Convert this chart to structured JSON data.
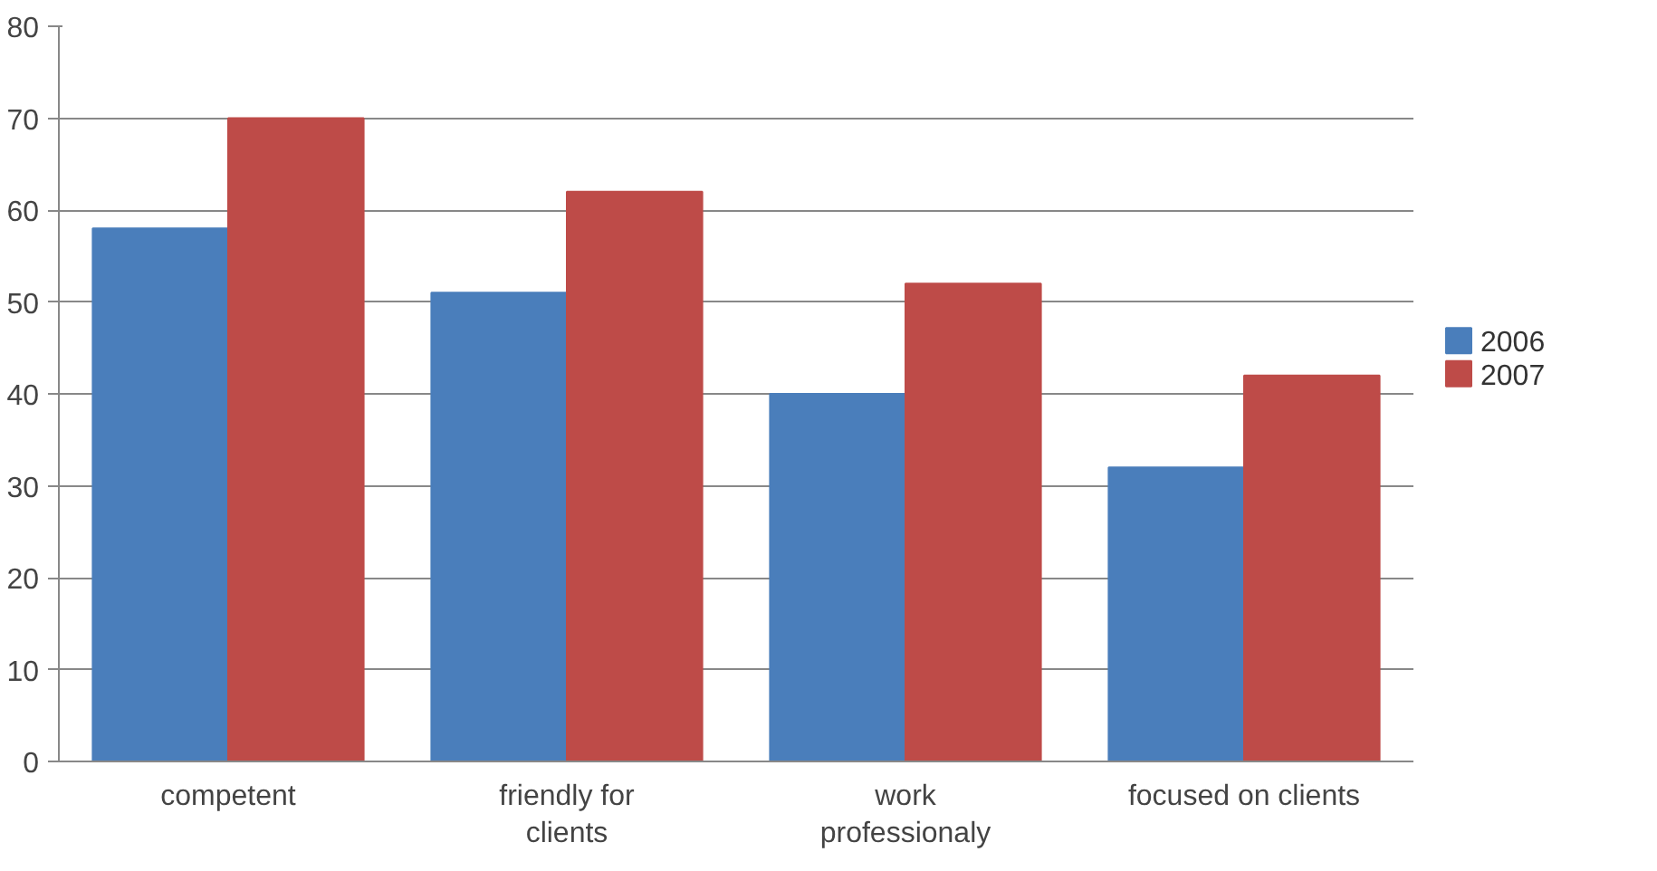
{
  "chart_data": {
    "type": "bar",
    "categories": [
      "competent",
      "friendly for\nclients",
      "work\nprofessionaly",
      "focused on clients"
    ],
    "series": [
      {
        "name": "2006",
        "color": "#4a7ebb",
        "values": [
          58,
          51,
          40,
          32
        ]
      },
      {
        "name": "2007",
        "color": "#be4b48",
        "values": [
          70,
          62,
          52,
          42
        ]
      }
    ],
    "ylim": [
      0,
      80
    ],
    "yticks": [
      0,
      10,
      20,
      30,
      40,
      50,
      60,
      70,
      80
    ],
    "grid": "y",
    "legend": "right"
  }
}
